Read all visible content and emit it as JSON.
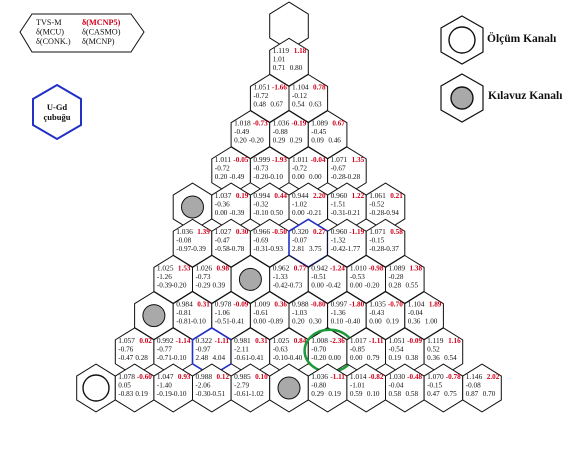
{
  "legend": {
    "lines": [
      {
        "left": "TVS-M",
        "right": "δ(MCNP5)"
      },
      {
        "left": "δ(MCU)",
        "right": "δ(CASMO)"
      },
      {
        "left": "δ(CONK.)",
        "right": "δ(MCNP)"
      }
    ],
    "ugd_label_1": "U-Gd",
    "ugd_label_2": "çubuğu",
    "measurement_channel": "Ölçüm Kanalı",
    "guide_channel": "Kılavuz Kanalı"
  },
  "colors": {
    "red": "#d0001a",
    "blue": "#2230c8",
    "green": "#1a9a3a",
    "grey": "#a9a9a9"
  },
  "rows": [
    {
      "cells": [
        {
          "type": "empty"
        }
      ]
    },
    {
      "cells": [
        {
          "type": "data",
          "v": "1.119",
          "r": "1.18",
          "a": "1.01",
          "b": "",
          "c": "0.71",
          "d": "0.80",
          "e": ""
        }
      ]
    },
    {
      "cells": [
        {
          "type": "data",
          "v": "1.051",
          "r": "-1.66",
          "a": "-0.72",
          "b": "-",
          "c": "0.48",
          "d": "0.67",
          "e": ""
        },
        {
          "type": "data",
          "v": "1.104",
          "r": "0.78",
          "a": "-0.12",
          "b": "",
          "c": "0.54",
          "d": "0.63",
          "e": ""
        }
      ]
    },
    {
      "cells": [
        {
          "type": "data",
          "v": "1.018",
          "r": "-0.73",
          "a": "-0.49",
          "b": "",
          "c": "0.20",
          "d": "-0.20",
          "e": ""
        },
        {
          "type": "data",
          "v": "1.036",
          "r": "-0.19",
          "a": "-0.88",
          "b": "",
          "c": "0.29",
          "d": "0.29",
          "e": ""
        },
        {
          "type": "data",
          "v": "1.089",
          "r": "0.67",
          "a": "-0.45",
          "b": "",
          "c": "0.09",
          "d": "0.46",
          "e": ""
        }
      ]
    },
    {
      "cells": [
        {
          "type": "data",
          "v": "1.011",
          "r": "-0.05",
          "a": "-0.72",
          "b": "",
          "c": "0.20",
          "d": "-0.49",
          "e": "0.20"
        },
        {
          "type": "data",
          "v": "0.999",
          "r": "-1.93",
          "a": "-0.73",
          "b": "",
          "c": "-0.20",
          "d": "-0.10",
          "e": ""
        },
        {
          "type": "data",
          "v": "1.011",
          "r": "-0.04",
          "a": "-0.72",
          "b": "",
          "c": "0.00",
          "d": "0.00",
          "e": ""
        },
        {
          "type": "data",
          "v": "1.071",
          "r": "1.35",
          "a": "-0.67",
          "b": "",
          "c": "-0.28",
          "d": "-0.28",
          "e": ""
        }
      ]
    },
    {
      "cells": [
        {
          "type": "guide"
        },
        {
          "type": "data",
          "v": "1.037",
          "r": "0.19",
          "a": "-0.36",
          "b": "",
          "c": "0.00",
          "d": "-0.39",
          "e": ""
        },
        {
          "type": "data",
          "v": "0.994",
          "r": "0.44",
          "a": "-0.32",
          "b": "",
          "c": "-0.10",
          "d": "0.50",
          "e": ""
        },
        {
          "type": "data",
          "v": "0.944",
          "r": "2.20",
          "a": "-1.02",
          "b": "",
          "c": "0.00",
          "d": "-0.21",
          "e": ""
        },
        {
          "type": "data",
          "v": "0.960",
          "r": "1.22",
          "a": "-1.51",
          "b": "",
          "c": "-0.31",
          "d": "-0.21",
          "e": ""
        },
        {
          "type": "data",
          "v": "1.061",
          "r": "0.21",
          "a": "-0.52",
          "b": "",
          "c": "-0.28",
          "d": "-0.94",
          "e": ""
        }
      ]
    },
    {
      "cells": [
        {
          "type": "data",
          "v": "1.036",
          "r": "1.39",
          "a": "-0.08",
          "b": "",
          "c": "-0.97",
          "d": "-0.39",
          "e": ""
        },
        {
          "type": "data",
          "v": "1.027",
          "r": "0.30",
          "a": "-0.47",
          "b": "",
          "c": "-0.58",
          "d": "-0.78",
          "e": ""
        },
        {
          "type": "data",
          "v": "0.966",
          "r": "-0.50",
          "a": "-0.69",
          "b": "",
          "c": "-0.31",
          "d": "-0.93",
          "e": ""
        },
        {
          "type": "data",
          "v": "0.320",
          "r": "0.27",
          "a": "-0.07",
          "b": "",
          "c": "2.81",
          "d": "3.75",
          "e": "",
          "blue": true
        },
        {
          "type": "data",
          "v": "0.960",
          "r": "-1.19",
          "a": "-1.32",
          "b": "",
          "c": "-0.42",
          "d": "-1.77",
          "e": ""
        },
        {
          "type": "data",
          "v": "1.071",
          "r": "0.58",
          "a": "-0.15",
          "b": "",
          "c": "-0.28",
          "d": "-0.37",
          "e": ""
        }
      ]
    },
    {
      "cells": [
        {
          "type": "data",
          "v": "1.025",
          "r": "1.53",
          "a": "-1.26",
          "b": "",
          "c": "-0.39",
          "d": "-0.20",
          "e": ""
        },
        {
          "type": "data",
          "v": "1.026",
          "r": "0.98",
          "a": "-0.73",
          "b": "",
          "c": "-0.29",
          "d": "0.39",
          "e": ""
        },
        {
          "type": "guide"
        },
        {
          "type": "data",
          "v": "0.962",
          "r": "0.77",
          "a": "-1.33",
          "b": "",
          "c": "-0.42",
          "d": "-0.73",
          "e": ""
        },
        {
          "type": "data",
          "v": "0.942",
          "r": "-1.24",
          "a": "-0.51",
          "b": "",
          "c": "0.00",
          "d": "-0.42",
          "e": ""
        },
        {
          "type": "data",
          "v": "1.010",
          "r": "-0.98",
          "a": "-0.53",
          "b": "",
          "c": "0.00",
          "d": "-0.20",
          "e": ""
        },
        {
          "type": "data",
          "v": "1.089",
          "r": "1.38",
          "a": "-0.28",
          "b": "",
          "c": "0.28",
          "d": "0.55",
          "e": ""
        }
      ]
    },
    {
      "cells": [
        {
          "type": "guide"
        },
        {
          "type": "data",
          "v": "0.984",
          "r": "0.31",
          "a": "-0.81",
          "b": "",
          "c": "-0.81",
          "d": "-0.10",
          "e": ""
        },
        {
          "type": "data",
          "v": "0.978",
          "r": "-0.09",
          "a": "-1.06",
          "b": "",
          "c": "-0.51",
          "d": "-0.41",
          "e": ""
        },
        {
          "type": "data",
          "v": "1.009",
          "r": "0.36",
          "a": "-0.61",
          "b": "",
          "c": "0.00",
          "d": "-0.89",
          "e": ""
        },
        {
          "type": "data",
          "v": "0.988",
          "r": "-0.80",
          "a": "-1.03",
          "b": "",
          "c": "0.20",
          "d": "0.30",
          "e": ""
        },
        {
          "type": "data",
          "v": "0.997",
          "r": "-1.80",
          "a": "-1.36",
          "b": "",
          "c": "0.10",
          "d": "-0.40",
          "e": ""
        },
        {
          "type": "data",
          "v": "1.035",
          "r": "-0.70",
          "a": "-0.43",
          "b": "",
          "c": "0.00",
          "d": "0.19",
          "e": ""
        },
        {
          "type": "data",
          "v": "1.104",
          "r": "1.89",
          "a": "-0.04",
          "b": "",
          "c": "0.36",
          "d": "1.00",
          "e": ""
        }
      ]
    },
    {
      "cells": [
        {
          "type": "data",
          "v": "1.057",
          "r": "0.02",
          "a": "-0.76",
          "b": "",
          "c": "-0.47",
          "d": "0.28",
          "e": ""
        },
        {
          "type": "data",
          "v": "0.992",
          "r": "-1.14",
          "a": "-0.77",
          "b": "",
          "c": "-0.71",
          "d": "-0.10",
          "e": ""
        },
        {
          "type": "data",
          "v": "0.322",
          "r": "-1.11",
          "a": "-0.97",
          "b": "",
          "c": "2.48",
          "d": "4.04",
          "e": "",
          "blue": true
        },
        {
          "type": "data",
          "v": "0.981",
          "r": "0.31",
          "a": "-2.11",
          "b": "",
          "c": "-0.61",
          "d": "-0.41",
          "e": ""
        },
        {
          "type": "data",
          "v": "1.025",
          "r": "0.84",
          "a": "-0.63",
          "b": "",
          "c": "-0.10",
          "d": "-0.40",
          "e": ""
        },
        {
          "type": "data",
          "v": "1.008",
          "r": "-2.36",
          "a": "-0.70",
          "b": "",
          "c": "-0.20",
          "d": "0.00",
          "e": "",
          "green": true
        },
        {
          "type": "data",
          "v": "1.017",
          "r": "-1.11",
          "a": "-0.85",
          "b": "",
          "c": "0.00",
          "d": "0.79",
          "e": ""
        },
        {
          "type": "data",
          "v": "1.051",
          "r": "-0.09",
          "a": "-0.54",
          "b": "",
          "c": "0.19",
          "d": "0.38",
          "e": ""
        },
        {
          "type": "data",
          "v": "1.119",
          "r": "1.16",
          "a": "0.52",
          "b": "",
          "c": "0.36",
          "d": "0.54",
          "e": ""
        }
      ]
    },
    {
      "cells": [
        {
          "type": "measure"
        },
        {
          "type": "data",
          "v": "1.078",
          "r": "-0.60",
          "a": "0.05",
          "b": "",
          "c": "-0.83",
          "d": "0.19",
          "e": ""
        },
        {
          "type": "data",
          "v": "1.047",
          "r": "0.93",
          "a": "-1.40",
          "b": "",
          "c": "-0.19",
          "d": "-0.10",
          "e": ""
        },
        {
          "type": "data",
          "v": "0.988",
          "r": "0.12",
          "a": "-2.06",
          "b": "",
          "c": "-0.30",
          "d": "-0.51",
          "e": ""
        },
        {
          "type": "data",
          "v": "0.985",
          "r": "0.10",
          "a": "-2.79",
          "b": "",
          "c": "-0.61",
          "d": "-1.02",
          "e": ""
        },
        {
          "type": "guide"
        },
        {
          "type": "data",
          "v": "1.036",
          "r": "-1.11",
          "a": "-0.80",
          "b": "",
          "c": "0.29",
          "d": "0.19",
          "e": ""
        },
        {
          "type": "data",
          "v": "1.014",
          "r": "-0.82",
          "a": "-1.01",
          "b": "",
          "c": "0.59",
          "d": "0.10",
          "e": ""
        },
        {
          "type": "data",
          "v": "1.030",
          "r": "-0.48",
          "a": "-0.04",
          "b": "",
          "c": "0.58",
          "d": "0.58",
          "e": ""
        },
        {
          "type": "data",
          "v": "1.070",
          "r": "-0.78",
          "a": "-0.15",
          "b": "",
          "c": "0.47",
          "d": "0.75",
          "e": ""
        },
        {
          "type": "data",
          "v": "1.146",
          "r": "2.02",
          "a": "-0.08",
          "b": "",
          "c": "0.87",
          "d": "0.70",
          "e": ""
        }
      ]
    }
  ]
}
